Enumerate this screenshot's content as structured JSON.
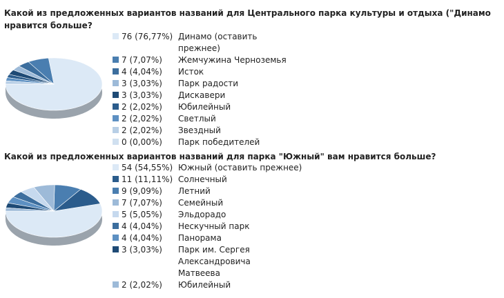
{
  "chart_data": [
    {
      "type": "pie",
      "title": "Какой из предложенных вариантов названий для Центрального парка культуры и отдыха (\"Динамо нравится больше?",
      "categories": [
        "Динамо (оставить прежнее)",
        "Жемчужина Черноземья",
        "Исток",
        "Парк радости",
        "Дискавери",
        "Юбилейный",
        "Светлый",
        "Звездный",
        "Парк победителей"
      ],
      "values": [
        76,
        7,
        4,
        3,
        3,
        2,
        2,
        2,
        0
      ],
      "value_labels": [
        "76 (76,77%)",
        "7 (7,07%)",
        "4 (4,04%)",
        "3 (3,03%)",
        "3 (3,03%)",
        "2 (2,02%)",
        "2 (2,02%)",
        "2 (2,02%)",
        "0 (0,00%)"
      ],
      "colors": [
        "#dce9f6",
        "#4a7eb0",
        "#3c6e9e",
        "#9dbad8",
        "#1e4a75",
        "#2b5c8c",
        "#5d90c2",
        "#b8cfe6",
        "#d0e0f0"
      ]
    },
    {
      "type": "pie",
      "title": "Какой из предложенных вариантов названий для парка \"Южный\" вам нравится больше?",
      "categories": [
        "Южный (оставить прежнее)",
        "Солнечный",
        "Летний",
        "Семейный",
        "Эльдорадо",
        "Нескучный парк",
        "Панорама",
        "Парк им. Сергея Александровича Матвеева",
        "Юбилейный"
      ],
      "values": [
        54,
        11,
        9,
        7,
        5,
        4,
        4,
        3,
        2
      ],
      "value_labels": [
        "54 (54,55%)",
        "11 (11,11%)",
        "9 (9,09%)",
        "7 (7,07%)",
        "5 (5,05%)",
        "4 (4,04%)",
        "4 (4,04%)",
        "3 (3,03%)",
        "2 (2,02%)"
      ],
      "colors": [
        "#dce9f6",
        "#2b5c8c",
        "#4a7eb0",
        "#9dbad8",
        "#c6d9ee",
        "#3c6e9e",
        "#5d90c2",
        "#1e4a75",
        "#9dbad8"
      ]
    }
  ]
}
